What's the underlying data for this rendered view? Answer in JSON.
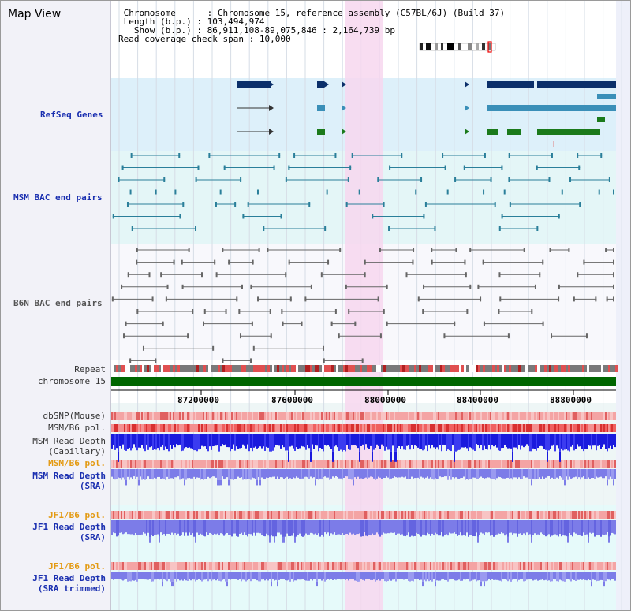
{
  "panel": {
    "title": "Map View"
  },
  "info": {
    "chromosome_key": "Chromosome",
    "chromosome_value": "Chromosome 15, reference assembly (C57BL/6J) (Build 37)",
    "length_key": "Length (b.p.)",
    "length_value": "103,494,974",
    "show_key": "Show (b.p.)",
    "show_value": "86,911,108-89,075,846 : 2,164,739 bp",
    "span_key": "Read coverage check span",
    "span_value": "10,000"
  },
  "tracks": {
    "refseq": "RefSeq Genes",
    "msm_bac": "MSM BAC end pairs",
    "b6n_bac": "B6N BAC end pairs",
    "repeat": "Repeat",
    "chromosome": "chromosome 15",
    "dbsnp": "dbSNP(Mouse)",
    "msm_b6_pol_1": "MSM/B6 pol.",
    "msm_read_cap_1": "MSM Read Depth",
    "msm_read_cap_2": "(Capillary)",
    "msm_b6_pol_2": "MSM/B6 pol.",
    "msm_read_sra_1": "MSM Read Depth",
    "msm_read_sra_2": "(SRA)",
    "jf1_b6_pol_1": "JF1/B6 pol.",
    "jf1_read_sra_1": "JF1 Read Depth",
    "jf1_read_sra_2": "(SRA)",
    "jf1_b6_pol_2": "JF1/B6 pol.",
    "jf1_read_trim_1": "JF1 Read Depth",
    "jf1_read_trim_2": "(SRA trimmed)"
  },
  "axis": {
    "ticks": [
      "87200000",
      "87600000",
      "88000000",
      "88400000",
      "88800000"
    ]
  },
  "colors": {
    "refseq_bg": "#ddf0fa",
    "msm_bac_bg": "#e4f6f7",
    "gene_navy": "#0b2f6a",
    "gene_teal": "#3a8fb8",
    "gene_green": "#1b7a1b",
    "bac_teal": "#2a7f9a",
    "bac_grey": "#666666",
    "highlight": "#f7d7ef",
    "chromosome_bar": "#006600",
    "depth_blue": "#1a1add",
    "depth_lilac": "#7c7ce8"
  }
}
